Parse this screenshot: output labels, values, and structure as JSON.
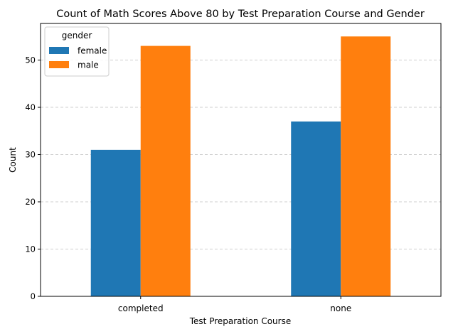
{
  "chart_data": {
    "type": "bar",
    "title": "Count of Math Scores Above 80 by Test Preparation Course and Gender",
    "xlabel": "Test Preparation Course",
    "ylabel": "Count",
    "categories": [
      "completed",
      "none"
    ],
    "series": [
      {
        "name": "female",
        "values": [
          31,
          37
        ],
        "color": "#1f77b4"
      },
      {
        "name": "male",
        "values": [
          53,
          55
        ],
        "color": "#ff7f0e"
      }
    ],
    "ylim": [
      0,
      57.75
    ],
    "yticks": [
      0,
      10,
      20,
      30,
      40,
      50
    ],
    "grid": "y-dashed",
    "legend": {
      "title": "gender",
      "placement": "top-left"
    }
  }
}
